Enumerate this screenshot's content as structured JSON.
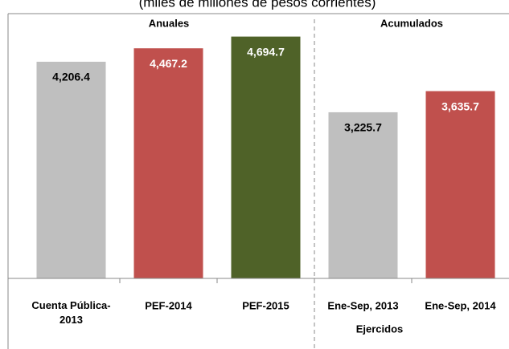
{
  "chart_data": {
    "type": "bar",
    "subtitle": "(miles de millones de pesos corrientes)",
    "group_labels": [
      "Anuales",
      "Acumulados"
    ],
    "annotation": "Ejercidos",
    "categories": [
      "Cuenta Pública-2013",
      "PEF-2014",
      "PEF-2015",
      "Ene-Sep, 2013",
      "Ene-Sep, 2014"
    ],
    "values": [
      4206.4,
      4467.2,
      4694.7,
      3225.7,
      3635.7
    ],
    "value_labels": [
      "4,206.4",
      "4,467.2",
      "4,694.7",
      "3,225.7",
      "3,635.7"
    ],
    "colors": [
      "#bfbfbf",
      "#c0504d",
      "#4f6228",
      "#bfbfbf",
      "#c0504d"
    ],
    "ylim": [
      0,
      5000
    ]
  }
}
